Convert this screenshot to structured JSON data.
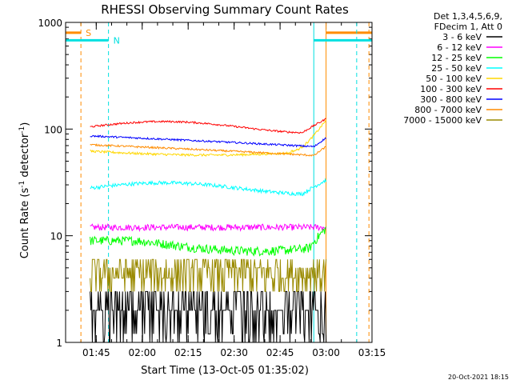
{
  "chart_data": {
    "type": "line",
    "title": "RHESSI Observing Summary Count Rates",
    "xlabel": "Start Time (13-Oct-05 01:35:02)",
    "ylabel_main": "Count Rate (s",
    "ylabel_sup1": "-1",
    "ylabel_mid": " detector",
    "ylabel_sup2": "-1",
    "ylabel_end": ")",
    "yscale": "log",
    "ylim": [
      1,
      1000
    ],
    "xlim": [
      "01:35",
      "03:15"
    ],
    "x_ticks": [
      "01:45",
      "02:00",
      "02:15",
      "02:30",
      "02:45",
      "03:00",
      "03:15"
    ],
    "y_ticks": [
      "1",
      "10",
      "100",
      "1000"
    ],
    "legend_header": [
      "Det 1,3,4,5,6,9,",
      "FDecim 1, Att 0"
    ],
    "legend_position": "right, outside plot",
    "series": [
      {
        "name": "3 - 6 keV",
        "color": "#000000",
        "baseline": 2.3,
        "shape": "noisy",
        "noise": 0.35
      },
      {
        "name": "6 - 12 keV",
        "color": "#ff00ff",
        "baseline": 12,
        "shape": "flat",
        "noise": 0.07
      },
      {
        "name": "12 - 25 keV",
        "color": "#00ff00",
        "baseline": 9,
        "shape": "dip",
        "noise": 0.1
      },
      {
        "name": "25 - 50 keV",
        "color": "#00ffff",
        "baseline": 28,
        "shape": "hump",
        "noise": 0.04
      },
      {
        "name": "50 - 100 keV",
        "color": "#ffd700",
        "baseline": 62,
        "shape": "rise",
        "noise": 0.025
      },
      {
        "name": "100 - 300 keV",
        "color": "#ff0000",
        "baseline": 105,
        "shape": "hump",
        "noise": 0.02
      },
      {
        "name": "300 - 800 keV",
        "color": "#0000ff",
        "baseline": 75,
        "shape": "decay",
        "noise": 0.02
      },
      {
        "name": "800 - 7000 keV",
        "color": "#ff8c00",
        "baseline": 62,
        "shape": "decay",
        "noise": 0.02
      },
      {
        "name": "7000 - 15000 keV",
        "color": "#9a8a00",
        "baseline": 4.5,
        "shape": "steps",
        "noise": 0.25
      }
    ],
    "markers": [
      {
        "label": "S",
        "color": "#ff8c00",
        "time": "01:40",
        "end_time": "03:00",
        "level": 800
      },
      {
        "label": "N",
        "color": "#00e0e0",
        "time": "01:49",
        "end_time": "02:56",
        "level": 680
      }
    ],
    "data_time_range": [
      "01:43",
      "03:00"
    ]
  },
  "timestamp": "20-Oct-2021 18:15"
}
